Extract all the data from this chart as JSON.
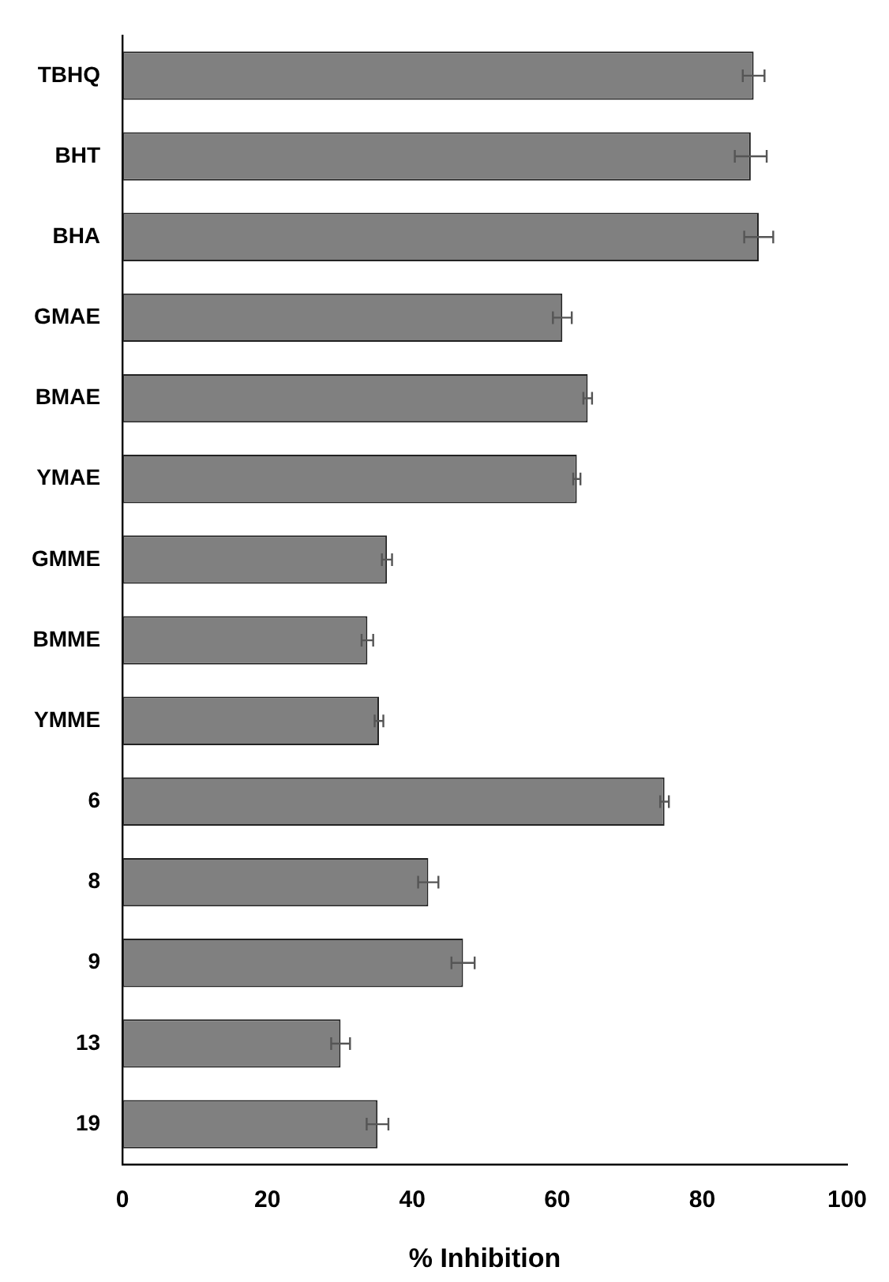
{
  "chart_data": {
    "type": "bar",
    "orientation": "horizontal",
    "xlabel": "% Inhibition",
    "categories": [
      "TBHQ",
      "BHT",
      "BHA",
      "GMAE",
      "BMAE",
      "YMAE",
      "GMME",
      "BMME",
      "YMME",
      "6",
      "8",
      "9",
      "13",
      "19"
    ],
    "values": [
      87.1,
      86.7,
      87.8,
      60.7,
      64.2,
      62.7,
      36.5,
      33.8,
      35.4,
      74.8,
      42.2,
      47.0,
      30.1,
      35.2
    ],
    "errors": [
      1.5,
      2.2,
      2.0,
      1.3,
      0.6,
      0.5,
      0.7,
      0.8,
      0.6,
      0.6,
      1.4,
      1.6,
      1.3,
      1.5
    ],
    "color": "#808080",
    "xlim": [
      0,
      100
    ],
    "xticks": [
      0,
      20,
      40,
      60,
      80,
      100
    ],
    "grid": false,
    "legend": false
  }
}
